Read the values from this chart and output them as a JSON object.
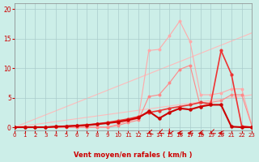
{
  "bg_color": "#cceee8",
  "grid_color": "#aacccc",
  "xlabel": "Vent moyen/en rafales ( km/h )",
  "xlim": [
    0,
    23
  ],
  "ylim": [
    -0.5,
    21
  ],
  "xticks": [
    0,
    1,
    2,
    3,
    4,
    5,
    6,
    7,
    8,
    9,
    10,
    11,
    12,
    13,
    14,
    15,
    16,
    17,
    18,
    19,
    20,
    21,
    22,
    23
  ],
  "yticks": [
    0,
    5,
    10,
    15,
    20
  ],
  "line_diag1": {
    "x": [
      0,
      23
    ],
    "y": [
      0,
      16.0
    ],
    "color": "#ffbbbb",
    "lw": 0.8
  },
  "line_diag2": {
    "x": [
      0,
      23
    ],
    "y": [
      0,
      5.5
    ],
    "color": "#ffbbbb",
    "lw": 0.8
  },
  "line_A": {
    "x": [
      0,
      1,
      2,
      3,
      4,
      5,
      6,
      7,
      8,
      9,
      10,
      11,
      12,
      13,
      14,
      15,
      16,
      17,
      18,
      19,
      20,
      21,
      22,
      23
    ],
    "y": [
      0,
      0,
      0,
      0,
      0,
      0,
      0,
      0,
      0,
      0,
      0.5,
      1.0,
      1.5,
      13.0,
      13.2,
      15.5,
      18.0,
      14.5,
      5.5,
      5.5,
      5.8,
      6.5,
      6.5,
      0.2
    ],
    "color": "#ffaaaa",
    "lw": 0.8,
    "marker": "o",
    "ms": 1.8
  },
  "line_B": {
    "x": [
      0,
      1,
      2,
      3,
      4,
      5,
      6,
      7,
      8,
      9,
      10,
      11,
      12,
      13,
      14,
      15,
      16,
      17,
      18,
      19,
      20,
      21,
      22,
      23
    ],
    "y": [
      0,
      0,
      0,
      0,
      0,
      0,
      0,
      0,
      0,
      0,
      0.3,
      0.8,
      1.2,
      5.2,
      5.5,
      7.5,
      9.8,
      10.5,
      3.5,
      4.2,
      4.5,
      5.5,
      5.5,
      0.1
    ],
    "color": "#ff8888",
    "lw": 0.8,
    "marker": "o",
    "ms": 1.8
  },
  "line_C": {
    "x": [
      0,
      1,
      2,
      3,
      4,
      5,
      6,
      7,
      8,
      9,
      10,
      11,
      12,
      13,
      14,
      15,
      16,
      17,
      18,
      19,
      20,
      21,
      22,
      23
    ],
    "y": [
      0,
      0,
      0,
      0,
      0.1,
      0.2,
      0.3,
      0.4,
      0.6,
      0.8,
      1.1,
      1.4,
      1.8,
      2.5,
      2.8,
      3.2,
      3.5,
      3.8,
      4.2,
      4.0,
      13.0,
      9.0,
      0.2,
      0.0
    ],
    "color": "#ee3333",
    "lw": 1.2,
    "marker": "o",
    "ms": 2.0
  },
  "line_D": {
    "x": [
      0,
      1,
      2,
      3,
      4,
      5,
      6,
      7,
      8,
      9,
      10,
      11,
      12,
      13,
      14,
      15,
      16,
      17,
      18,
      19,
      20,
      21,
      22,
      23
    ],
    "y": [
      0,
      0,
      0,
      0,
      0.1,
      0.15,
      0.25,
      0.35,
      0.5,
      0.7,
      0.9,
      1.2,
      1.6,
      2.7,
      1.5,
      2.5,
      3.2,
      3.0,
      3.5,
      3.8,
      3.8,
      0.1,
      0.0,
      0.0
    ],
    "color": "#cc0000",
    "lw": 1.5,
    "marker": "o",
    "ms": 2.2
  },
  "arrows": {
    "x": [
      13,
      14,
      15,
      16,
      17,
      18,
      19,
      20
    ],
    "angles": [
      225,
      215,
      190,
      270,
      270,
      240,
      215,
      270
    ]
  }
}
